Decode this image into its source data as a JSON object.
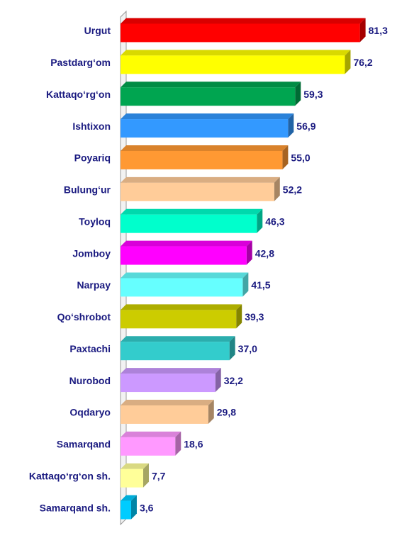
{
  "chart_data": {
    "type": "bar",
    "orientation": "horizontal",
    "categories": [
      "Urgut",
      "Pastdarg‘om",
      "Kattaqo‘rg‘on",
      "Ishtixon",
      "Poyariq",
      "Bulung‘ur",
      "Toyloq",
      "Jomboy",
      "Narpay",
      "Qo‘shrobot",
      "Paxtachi",
      "Nurobod",
      "Oqdaryo",
      "Samarqand",
      "Kattaqo‘rg‘on sh.",
      "Samarqand sh."
    ],
    "values": [
      81.3,
      76.2,
      59.3,
      56.9,
      55.0,
      52.2,
      46.3,
      42.8,
      41.5,
      39.3,
      37.0,
      32.2,
      29.8,
      18.6,
      7.7,
      3.6
    ],
    "value_labels": [
      "81,3",
      "76,2",
      "59,3",
      "56,9",
      "55,0",
      "52,2",
      "46,3",
      "42,8",
      "41,5",
      "39,3",
      "37,0",
      "32,2",
      "29,8",
      "18,6",
      "7,7",
      "3,6"
    ],
    "colors": [
      "#ff0000",
      "#ffff00",
      "#00a550",
      "#3399ff",
      "#ff9933",
      "#ffcc99",
      "#00ffcc",
      "#ff00ff",
      "#66ffff",
      "#cccc00",
      "#33cccc",
      "#cc99ff",
      "#ffcc99",
      "#ff99ff",
      "#ffff99",
      "#00ccff"
    ],
    "xlim": [
      0,
      85
    ]
  }
}
